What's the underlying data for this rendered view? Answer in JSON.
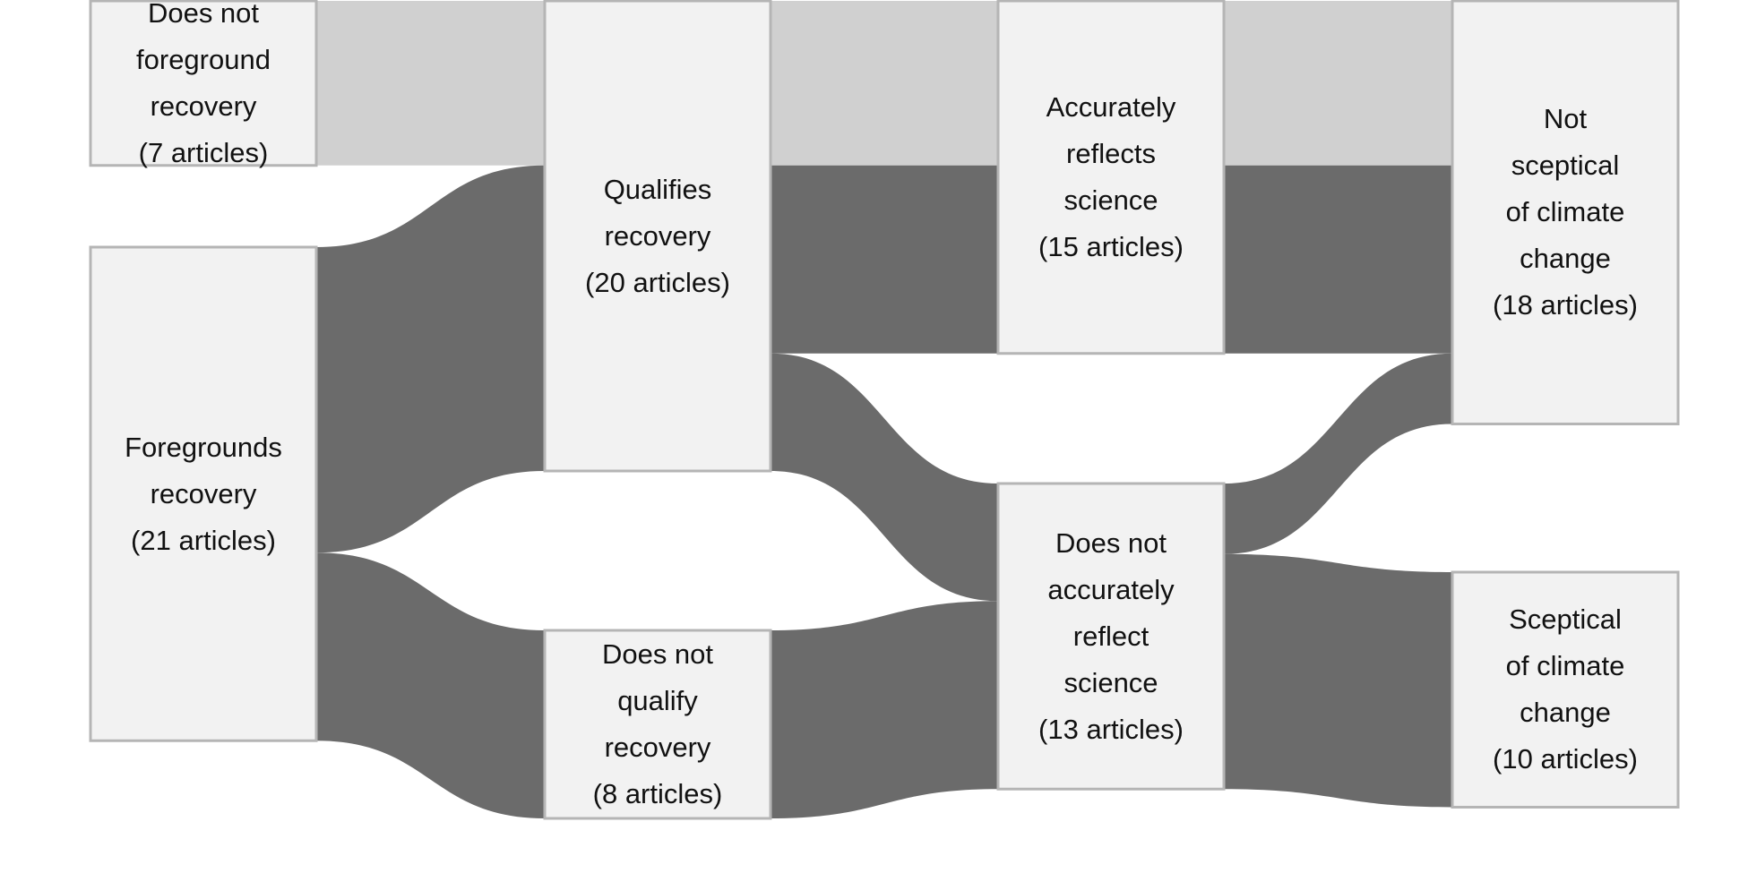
{
  "colors": {
    "node_fill": "#f2f2f2",
    "node_stroke": "#b5b5b5",
    "link_light": "#d0d0d0",
    "link_dark": "#6b6b6b",
    "background": "#ffffff"
  },
  "nodes": {
    "does_not_foreground": {
      "lines": [
        "Does not",
        "foreground",
        "recovery",
        "(7 articles)"
      ],
      "count": 7
    },
    "foregrounds": {
      "lines": [
        "Foregrounds",
        "recovery",
        "(21 articles)"
      ],
      "count": 21
    },
    "qualifies": {
      "lines": [
        "Qualifies",
        "recovery",
        "(20 articles)"
      ],
      "count": 20
    },
    "does_not_qualify": {
      "lines": [
        "Does not",
        "qualify",
        "recovery",
        "(8 articles)"
      ],
      "count": 8
    },
    "accurately_reflects": {
      "lines": [
        "Accurately",
        "reflects",
        "science",
        "(15 articles)"
      ],
      "count": 15
    },
    "does_not_accurately_reflect": {
      "lines": [
        "Does not",
        "accurately",
        "reflect",
        "science",
        "(13 articles)"
      ],
      "count": 13
    },
    "not_sceptical": {
      "lines": [
        "Not",
        "sceptical",
        "of climate",
        "change",
        "(18 articles)"
      ],
      "count": 18
    },
    "sceptical": {
      "lines": [
        "Sceptical",
        "of climate",
        "change",
        "(10 articles)"
      ],
      "count": 10
    }
  },
  "links": [
    {
      "source": "does_not_foreground",
      "target": "qualifies",
      "value": 7,
      "shade": "light"
    },
    {
      "source": "foregrounds",
      "target": "qualifies",
      "value": 13,
      "shade": "dark"
    },
    {
      "source": "foregrounds",
      "target": "does_not_qualify",
      "value": 8,
      "shade": "dark"
    },
    {
      "source": "qualifies",
      "target": "accurately_reflects",
      "value": 7,
      "shade": "light"
    },
    {
      "source": "qualifies",
      "target": "accurately_reflects",
      "value": 8,
      "shade": "dark"
    },
    {
      "source": "qualifies",
      "target": "does_not_accurately_reflect",
      "value": 5,
      "shade": "dark"
    },
    {
      "source": "does_not_qualify",
      "target": "does_not_accurately_reflect",
      "value": 8,
      "shade": "dark"
    },
    {
      "source": "accurately_reflects",
      "target": "not_sceptical",
      "value": 7,
      "shade": "light"
    },
    {
      "source": "accurately_reflects",
      "target": "not_sceptical",
      "value": 8,
      "shade": "dark"
    },
    {
      "source": "does_not_accurately_reflect",
      "target": "not_sceptical",
      "value": 3,
      "shade": "dark"
    },
    {
      "source": "does_not_accurately_reflect",
      "target": "sceptical",
      "value": 10,
      "shade": "dark"
    }
  ]
}
